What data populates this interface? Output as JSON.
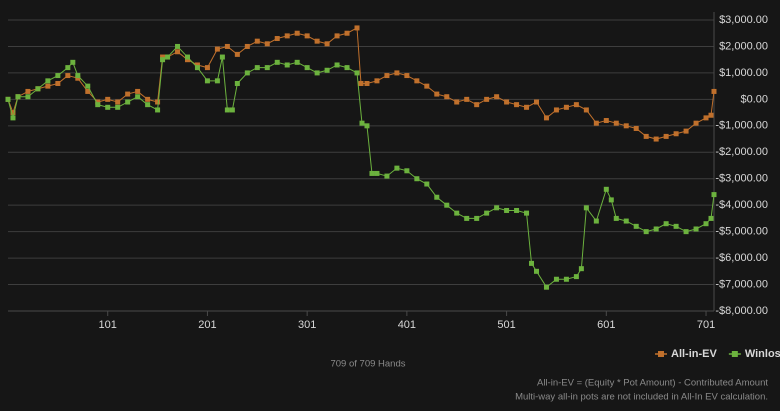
{
  "chart_data": {
    "type": "line",
    "footer": "709 of 709 Hands",
    "notes": [
      "All-in-EV = (Equity * Pot Amount) - Contributed Amount",
      "Multi-way all-in pots are not included in All-In EV calculation."
    ],
    "xlim": [
      1,
      709
    ],
    "xticks": [
      101,
      201,
      301,
      401,
      501,
      601,
      701
    ],
    "ylim": [
      -8000,
      3000
    ],
    "yticks": [
      {
        "value": 3000,
        "label": "$3,000.00"
      },
      {
        "value": 2000,
        "label": "$2,000.00"
      },
      {
        "value": 1000,
        "label": "$1,000.00"
      },
      {
        "value": 0,
        "label": "$0.00"
      },
      {
        "value": -1000,
        "label": "-$1,000.00"
      },
      {
        "value": -2000,
        "label": "-$2,000.00"
      },
      {
        "value": -3000,
        "label": "-$3,000.00"
      },
      {
        "value": -4000,
        "label": "-$4,000.00"
      },
      {
        "value": -5000,
        "label": "-$5,000.00"
      },
      {
        "value": -6000,
        "label": "-$6,000.00"
      },
      {
        "value": -7000,
        "label": "-$7,000.00"
      },
      {
        "value": -8000,
        "label": "-$8,000.00"
      }
    ],
    "grid": true,
    "legend": "bottom-right",
    "series": [
      {
        "name": "All-in-EV",
        "color": "#c0702c",
        "x": [
          1,
          6,
          11,
          21,
          31,
          41,
          51,
          61,
          71,
          81,
          91,
          101,
          111,
          121,
          131,
          141,
          151,
          156,
          161,
          171,
          181,
          191,
          201,
          211,
          221,
          231,
          241,
          251,
          261,
          271,
          281,
          291,
          301,
          311,
          321,
          331,
          341,
          351,
          355,
          361,
          371,
          381,
          391,
          401,
          411,
          421,
          431,
          441,
          451,
          461,
          471,
          481,
          491,
          501,
          511,
          521,
          531,
          541,
          551,
          561,
          571,
          581,
          591,
          601,
          611,
          621,
          631,
          641,
          651,
          661,
          671,
          681,
          691,
          701,
          706,
          709
        ],
        "values": [
          0,
          -500,
          100,
          300,
          400,
          500,
          600,
          900,
          800,
          300,
          -100,
          0,
          -100,
          200,
          300,
          0,
          -100,
          1600,
          1600,
          1800,
          1500,
          1300,
          1200,
          1900,
          2000,
          1700,
          2000,
          2200,
          2100,
          2300,
          2400,
          2500,
          2400,
          2200,
          2100,
          2400,
          2500,
          2700,
          600,
          600,
          700,
          900,
          1000,
          900,
          700,
          500,
          200,
          100,
          -100,
          0,
          -200,
          0,
          100,
          -100,
          -200,
          -300,
          -100,
          -700,
          -400,
          -300,
          -200,
          -400,
          -900,
          -800,
          -900,
          -1000,
          -1100,
          -1400,
          -1500,
          -1400,
          -1300,
          -1200,
          -900,
          -700,
          -600,
          300
        ]
      },
      {
        "name": "Winloss",
        "color": "#6cb23e",
        "x": [
          1,
          6,
          11,
          21,
          31,
          41,
          51,
          61,
          66,
          71,
          81,
          91,
          101,
          111,
          121,
          131,
          141,
          151,
          156,
          161,
          171,
          181,
          191,
          201,
          211,
          216,
          221,
          226,
          231,
          241,
          251,
          261,
          271,
          281,
          291,
          301,
          311,
          321,
          331,
          341,
          351,
          356,
          361,
          366,
          371,
          381,
          391,
          401,
          411,
          421,
          431,
          441,
          451,
          461,
          471,
          481,
          491,
          501,
          511,
          521,
          526,
          531,
          541,
          551,
          561,
          571,
          576,
          581,
          591,
          601,
          606,
          611,
          621,
          631,
          641,
          651,
          661,
          671,
          681,
          691,
          701,
          706,
          709
        ],
        "values": [
          0,
          -700,
          100,
          100,
          400,
          700,
          900,
          1200,
          1400,
          900,
          500,
          -200,
          -300,
          -300,
          -100,
          100,
          -200,
          -400,
          1500,
          1600,
          2000,
          1600,
          1200,
          700,
          700,
          1600,
          -400,
          -400,
          600,
          1000,
          1200,
          1200,
          1400,
          1300,
          1400,
          1200,
          1000,
          1100,
          1300,
          1200,
          1000,
          -900,
          -1000,
          -2800,
          -2800,
          -2900,
          -2600,
          -2700,
          -3000,
          -3200,
          -3700,
          -4000,
          -4300,
          -4500,
          -4500,
          -4300,
          -4100,
          -4200,
          -4200,
          -4300,
          -6200,
          -6500,
          -7100,
          -6800,
          -6800,
          -6700,
          -6400,
          -4100,
          -4600,
          -3400,
          -3800,
          -4500,
          -4600,
          -4800,
          -5000,
          -4900,
          -4700,
          -4800,
          -5000,
          -4900,
          -4700,
          -4500,
          -3600
        ]
      }
    ]
  }
}
